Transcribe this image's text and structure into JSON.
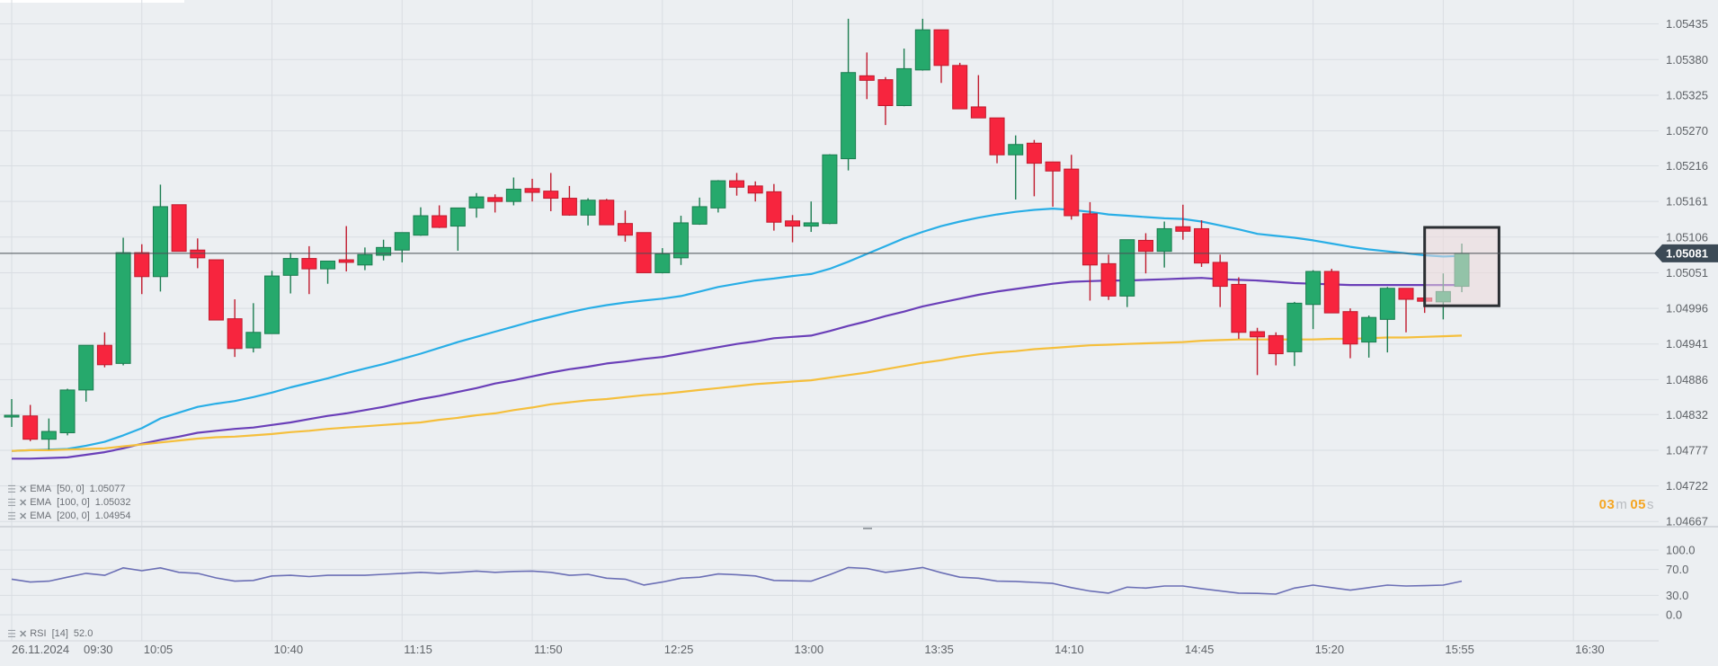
{
  "colors": {
    "background": "#eceff2",
    "bull": "#26a96c",
    "bull_border": "#1b7d50",
    "bear": "#f7253e",
    "bear_border": "#c01a2d",
    "grid": "#d9dde2",
    "current_price_line": "#4a4f55",
    "current_price_badge": "#3c4a56",
    "highlight_fill": "#ecd9da",
    "highlight_border": "#2b2f33",
    "countdown": "#f5a623"
  },
  "countdown": {
    "minutes": "03",
    "minutes_unit": "m",
    "seconds": "05",
    "seconds_unit": "s"
  },
  "chart_data": {
    "type": "candlestick",
    "date": "26.11.2024",
    "grid": true,
    "ylim": [
      1.04659,
      1.05472
    ],
    "price_ticks": [
      "1.05435",
      "1.05380",
      "1.05325",
      "1.05270",
      "1.05216",
      "1.05161",
      "1.05106",
      "1.05051",
      "1.04996",
      "1.04941",
      "1.04886",
      "1.04832",
      "1.04777",
      "1.04722",
      "1.04667"
    ],
    "time_ticks": [
      "09:30",
      "10:05",
      "10:40",
      "11:15",
      "11:50",
      "12:25",
      "13:00",
      "13:35",
      "14:10",
      "14:45",
      "15:20",
      "15:55",
      "16:30"
    ],
    "current_price": "1.05081",
    "highlight": {
      "from": "15:50",
      "to": "16:10",
      "price_top": 1.05121,
      "price_bottom": 1.05
    },
    "times": [
      "09:30",
      "09:35",
      "09:40",
      "09:45",
      "09:50",
      "09:55",
      "10:00",
      "10:05",
      "10:10",
      "10:15",
      "10:20",
      "10:25",
      "10:30",
      "10:35",
      "10:40",
      "10:45",
      "10:50",
      "10:55",
      "11:00",
      "11:05",
      "11:10",
      "11:15",
      "11:20",
      "11:25",
      "11:30",
      "11:35",
      "11:40",
      "11:45",
      "11:50",
      "11:55",
      "12:00",
      "12:05",
      "12:10",
      "12:15",
      "12:20",
      "12:25",
      "12:30",
      "12:35",
      "12:40",
      "12:45",
      "12:50",
      "12:55",
      "13:00",
      "13:05",
      "13:10",
      "13:15",
      "13:20",
      "13:25",
      "13:30",
      "13:35",
      "13:40",
      "13:45",
      "13:50",
      "13:55",
      "14:00",
      "14:05",
      "14:10",
      "14:15",
      "14:20",
      "14:25",
      "14:30",
      "14:35",
      "14:40",
      "14:45",
      "14:50",
      "14:55",
      "15:00",
      "15:05",
      "15:10",
      "15:15",
      "15:20",
      "15:25",
      "15:30",
      "15:35",
      "15:40",
      "15:45",
      "15:50",
      "15:55",
      "16:00"
    ],
    "ohlc_fields": [
      "open",
      "high",
      "low",
      "close"
    ],
    "ohlc": [
      [
        1.04829,
        1.04856,
        1.04813,
        1.04831
      ],
      [
        1.0483,
        1.04847,
        1.04791,
        1.04794
      ],
      [
        1.04794,
        1.04826,
        1.04778,
        1.04806
      ],
      [
        1.04804,
        1.04872,
        1.048,
        1.0487
      ],
      [
        1.0487,
        1.04939,
        1.04852,
        1.04939
      ],
      [
        1.04939,
        1.04959,
        1.04905,
        1.04909
      ],
      [
        1.04911,
        1.05105,
        1.04908,
        1.05082
      ],
      [
        1.05082,
        1.05095,
        1.05018,
        1.05045
      ],
      [
        1.05045,
        1.05187,
        1.05022,
        1.05153
      ],
      [
        1.05156,
        1.05156,
        1.05084,
        1.05084
      ],
      [
        1.05086,
        1.05104,
        1.05058,
        1.05074
      ],
      [
        1.05071,
        1.05071,
        1.04978,
        1.04978
      ],
      [
        1.0498,
        1.0501,
        1.04921,
        1.04934
      ],
      [
        1.04935,
        1.05004,
        1.04928,
        1.04959
      ],
      [
        1.04957,
        1.05054,
        1.04957,
        1.05046
      ],
      [
        1.05047,
        1.05082,
        1.05019,
        1.05073
      ],
      [
        1.05073,
        1.05092,
        1.05018,
        1.05057
      ],
      [
        1.05057,
        1.05069,
        1.05034,
        1.05069
      ],
      [
        1.05071,
        1.05123,
        1.05053,
        1.05067
      ],
      [
        1.05063,
        1.0509,
        1.05055,
        1.05079
      ],
      [
        1.05078,
        1.05102,
        1.0507,
        1.0509
      ],
      [
        1.05086,
        1.05113,
        1.05067,
        1.05113
      ],
      [
        1.05109,
        1.05152,
        1.05108,
        1.05139
      ],
      [
        1.05139,
        1.05155,
        1.0512,
        1.05121
      ],
      [
        1.05123,
        1.05151,
        1.05085,
        1.05151
      ],
      [
        1.05151,
        1.05174,
        1.05136,
        1.05168
      ],
      [
        1.05167,
        1.05172,
        1.05144,
        1.05161
      ],
      [
        1.05161,
        1.05198,
        1.05155,
        1.0518
      ],
      [
        1.05181,
        1.05196,
        1.05161,
        1.05175
      ],
      [
        1.05177,
        1.05205,
        1.05146,
        1.05166
      ],
      [
        1.05166,
        1.05185,
        1.05139,
        1.0514
      ],
      [
        1.0514,
        1.05166,
        1.05124,
        1.05163
      ],
      [
        1.05163,
        1.05165,
        1.05125,
        1.05125
      ],
      [
        1.05127,
        1.05147,
        1.05099,
        1.05109
      ],
      [
        1.05113,
        1.05113,
        1.05051,
        1.05051
      ],
      [
        1.05051,
        1.05089,
        1.0505,
        1.0508
      ],
      [
        1.05074,
        1.05139,
        1.05063,
        1.05128
      ],
      [
        1.05126,
        1.05167,
        1.05125,
        1.05153
      ],
      [
        1.05151,
        1.05194,
        1.05144,
        1.05193
      ],
      [
        1.05193,
        1.05205,
        1.0517,
        1.05183
      ],
      [
        1.05185,
        1.05192,
        1.05161,
        1.05174
      ],
      [
        1.05176,
        1.05188,
        1.05116,
        1.05129
      ],
      [
        1.05131,
        1.0514,
        1.05098,
        1.05123
      ],
      [
        1.05123,
        1.05161,
        1.05114,
        1.05128
      ],
      [
        1.05127,
        1.05234,
        1.05126,
        1.05233
      ],
      [
        1.05227,
        1.05443,
        1.05209,
        1.0536
      ],
      [
        1.05355,
        1.05391,
        1.05319,
        1.05348
      ],
      [
        1.05349,
        1.05353,
        1.05279,
        1.05309
      ],
      [
        1.05309,
        1.05397,
        1.05308,
        1.05366
      ],
      [
        1.05364,
        1.05443,
        1.05363,
        1.05426
      ],
      [
        1.05426,
        1.05426,
        1.05344,
        1.05371
      ],
      [
        1.05371,
        1.05375,
        1.05304,
        1.05304
      ],
      [
        1.05307,
        1.05356,
        1.0529,
        1.0529
      ],
      [
        1.0529,
        1.0529,
        1.0522,
        1.05233
      ],
      [
        1.05233,
        1.05263,
        1.05164,
        1.05249
      ],
      [
        1.05251,
        1.05256,
        1.05169,
        1.0522
      ],
      [
        1.05222,
        1.05222,
        1.05153,
        1.05208
      ],
      [
        1.05211,
        1.05233,
        1.05133,
        1.05139
      ],
      [
        1.05142,
        1.0516,
        1.05008,
        1.05063
      ],
      [
        1.05065,
        1.05079,
        1.05009,
        1.05015
      ],
      [
        1.05015,
        1.05102,
        1.04998,
        1.05102
      ],
      [
        1.05101,
        1.05112,
        1.0505,
        1.05084
      ],
      [
        1.05084,
        1.0513,
        1.05059,
        1.05119
      ],
      [
        1.05122,
        1.05156,
        1.05102,
        1.05115
      ],
      [
        1.05119,
        1.05132,
        1.0506,
        1.05066
      ],
      [
        1.05067,
        1.05079,
        1.04998,
        1.0503
      ],
      [
        1.05033,
        1.05044,
        1.04949,
        1.04959
      ],
      [
        1.0496,
        1.04966,
        1.04893,
        1.04952
      ],
      [
        1.04954,
        1.04959,
        1.04908,
        1.04926
      ],
      [
        1.04929,
        1.05006,
        1.04907,
        1.05004
      ],
      [
        1.05002,
        1.05055,
        1.04964,
        1.05053
      ],
      [
        1.05053,
        1.05057,
        1.04989,
        1.04989
      ],
      [
        1.04991,
        1.04996,
        1.04919,
        1.04941
      ],
      [
        1.04944,
        1.04985,
        1.0492,
        1.04982
      ],
      [
        1.04979,
        1.05029,
        1.04928,
        1.05027
      ],
      [
        1.05027,
        1.05027,
        1.04959,
        1.0501
      ],
      [
        1.05012,
        1.05012,
        1.04989,
        1.05007
      ],
      [
        1.05006,
        1.0505,
        1.04979,
        1.05022
      ],
      [
        1.0503,
        1.05096,
        1.05021,
        1.05081
      ]
    ],
    "indicators": [
      {
        "name": "EMA",
        "params": "[50,  0]",
        "value": "1.05077",
        "color": "#29aee6",
        "values": [
          1.04776,
          1.04777,
          1.04778,
          1.04779,
          1.04784,
          1.0479,
          1.048,
          1.04811,
          1.04826,
          1.04835,
          1.04844,
          1.04849,
          1.04853,
          1.04859,
          1.04866,
          1.04874,
          1.04881,
          1.04888,
          1.04896,
          1.04903,
          1.0491,
          1.04918,
          1.04926,
          1.04935,
          1.04944,
          1.04952,
          1.0496,
          1.04968,
          1.04976,
          1.04983,
          1.0499,
          1.04996,
          1.05001,
          1.05005,
          1.05008,
          1.05011,
          1.05015,
          1.05022,
          1.05029,
          1.05034,
          1.05039,
          1.05042,
          1.05046,
          1.05049,
          1.05057,
          1.05068,
          1.0508,
          1.05092,
          1.05104,
          1.05114,
          1.05123,
          1.0513,
          1.05136,
          1.05141,
          1.05145,
          1.05148,
          1.0515,
          1.05148,
          1.05145,
          1.05141,
          1.05139,
          1.05137,
          1.05135,
          1.05134,
          1.0513,
          1.05124,
          1.05118,
          1.05111,
          1.05108,
          1.05105,
          1.05101,
          1.05096,
          1.05091,
          1.05087,
          1.05084,
          1.05081,
          1.05078,
          1.05076,
          1.05077
        ]
      },
      {
        "name": "EMA",
        "params": "[100,  0]",
        "value": "1.05032",
        "color": "#6a3fb8",
        "values": [
          1.04764,
          1.04764,
          1.04765,
          1.04766,
          1.0477,
          1.04774,
          1.0478,
          1.04787,
          1.04793,
          1.04798,
          1.04804,
          1.04807,
          1.0481,
          1.04812,
          1.04816,
          1.0482,
          1.04825,
          1.0483,
          1.04834,
          1.04839,
          1.04844,
          1.0485,
          1.04856,
          1.04861,
          1.04867,
          1.04873,
          1.0488,
          1.04885,
          1.04891,
          1.04897,
          1.04902,
          1.04906,
          1.04911,
          1.04914,
          1.04918,
          1.04921,
          1.04926,
          1.04931,
          1.04936,
          1.04941,
          1.04945,
          1.0495,
          1.04952,
          1.04954,
          1.04961,
          1.04969,
          1.04976,
          1.04984,
          1.04991,
          1.04999,
          1.05005,
          1.05011,
          1.05017,
          1.05022,
          1.05026,
          1.0503,
          1.05034,
          1.05037,
          1.05038,
          1.05039,
          1.05039,
          1.0504,
          1.05041,
          1.05042,
          1.05043,
          1.05041,
          1.0504,
          1.05039,
          1.05037,
          1.05035,
          1.05034,
          1.05033,
          1.05032,
          1.05032,
          1.05032,
          1.05032,
          1.05032,
          1.05032,
          1.05032
        ]
      },
      {
        "name": "EMA",
        "params": "[200,  0]",
        "value": "1.04954",
        "color": "#f5bf3c",
        "values": [
          1.04776,
          1.04777,
          1.04777,
          1.04778,
          1.04779,
          1.0478,
          1.04783,
          1.04786,
          1.04789,
          1.04792,
          1.04795,
          1.04797,
          1.04798,
          1.048,
          1.04802,
          1.04805,
          1.04807,
          1.0481,
          1.04812,
          1.04814,
          1.04816,
          1.04818,
          1.0482,
          1.04824,
          1.04827,
          1.04831,
          1.04834,
          1.04839,
          1.04843,
          1.04848,
          1.04851,
          1.04854,
          1.04856,
          1.04859,
          1.04862,
          1.04864,
          1.04867,
          1.0487,
          1.04873,
          1.04876,
          1.04879,
          1.04881,
          1.04883,
          1.04885,
          1.04889,
          1.04893,
          1.04897,
          1.04902,
          1.04907,
          1.04912,
          1.04916,
          1.04921,
          1.04925,
          1.04928,
          1.0493,
          1.04933,
          1.04935,
          1.04937,
          1.04939,
          1.0494,
          1.04941,
          1.04942,
          1.04943,
          1.04944,
          1.04946,
          1.04947,
          1.04948,
          1.04948,
          1.04948,
          1.04948,
          1.04948,
          1.04949,
          1.04949,
          1.0495,
          1.04951,
          1.04951,
          1.04952,
          1.04953,
          1.04954
        ]
      }
    ],
    "rsi": {
      "name": "RSI",
      "params": "[14]",
      "value": "52.0",
      "color": "#6b6fb5",
      "ylim": [
        0,
        100
      ],
      "ticks": [
        "100.0",
        "70.0",
        "30.0",
        "0.0"
      ],
      "values": [
        55,
        50.5,
        52,
        58,
        64,
        61,
        72.5,
        68,
        72.5,
        65.5,
        64,
        57,
        52,
        53,
        60,
        61,
        59,
        61,
        61,
        61,
        62.5,
        64,
        65.5,
        64,
        65.5,
        67.5,
        65.5,
        67,
        67.5,
        65.5,
        61,
        62.5,
        56.5,
        55,
        46,
        50.5,
        56.5,
        58,
        63,
        62,
        60,
        53,
        52.5,
        52,
        62,
        73,
        71.5,
        65.5,
        69,
        73,
        65,
        58,
        56.5,
        52,
        51.5,
        50,
        48.5,
        42,
        36.7,
        33.5,
        42.7,
        41.3,
        44.5,
        44.5,
        40.4,
        37,
        33.5,
        33,
        32,
        41.3,
        45.9,
        42,
        38,
        42,
        45.9,
        44.5,
        45,
        45.9,
        52
      ]
    }
  }
}
